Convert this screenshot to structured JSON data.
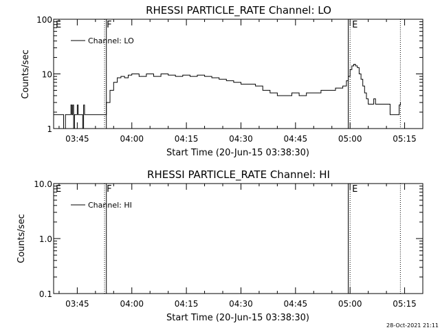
{
  "footer_date": "28-Oct-2021 21:11",
  "chart_data": [
    {
      "type": "line",
      "title": "RHESSI PARTICLE_RATE Channel: LO",
      "xlabel": "Start Time (20-Jun-15 03:38:30)",
      "ylabel": "Counts/sec",
      "yscale": "log",
      "ylim": [
        1,
        100
      ],
      "xlim": [
        "03:38:30",
        "05:20:00"
      ],
      "x_ticks": [
        "03:45",
        "04:00",
        "04:15",
        "04:30",
        "04:45",
        "05:00",
        "05:15"
      ],
      "y_ticks": [
        "1",
        "10",
        "100"
      ],
      "legend": "Channel: LO",
      "legend_position": "top-left",
      "markers": [
        {
          "time": "03:38:30",
          "label": "E",
          "style": "solid"
        },
        {
          "time": "03:52:30",
          "label": "F",
          "style": "dotted"
        },
        {
          "time": "03:53:00",
          "label": "",
          "style": "solid"
        },
        {
          "time": "04:59:30",
          "label": "",
          "style": "solid"
        },
        {
          "time": "05:00:00",
          "label": "E",
          "style": "dotted"
        },
        {
          "time": "05:13:50",
          "label": "",
          "style": "dotted"
        }
      ],
      "series": [
        {
          "name": "Channel: LO",
          "points": [
            [
              "03:38:30",
              1.8
            ],
            [
              "03:41:00",
              1.8
            ],
            [
              "03:41:15",
              1.0
            ],
            [
              "03:41:45",
              1.8
            ],
            [
              "03:43:00",
              1.8
            ],
            [
              "03:43:15",
              2.7
            ],
            [
              "03:43:30",
              1.8
            ],
            [
              "03:43:45",
              2.7
            ],
            [
              "03:44:00",
              1.0
            ],
            [
              "03:44:15",
              1.8
            ],
            [
              "03:45:00",
              2.7
            ],
            [
              "03:45:15",
              1.8
            ],
            [
              "03:46:15",
              1.8
            ],
            [
              "03:46:30",
              1.0
            ],
            [
              "03:46:45",
              2.7
            ],
            [
              "03:47:00",
              1.8
            ],
            [
              "03:52:45",
              1.8
            ],
            [
              "03:53:00",
              3.0
            ],
            [
              "03:54:00",
              5.0
            ],
            [
              "03:55:00",
              7.0
            ],
            [
              "03:56:00",
              8.5
            ],
            [
              "03:57:00",
              9.0
            ],
            [
              "03:58:00",
              8.5
            ],
            [
              "03:59:00",
              9.5
            ],
            [
              "04:00:00",
              10.0
            ],
            [
              "04:02:00",
              9.0
            ],
            [
              "04:04:00",
              10.0
            ],
            [
              "04:06:00",
              9.0
            ],
            [
              "04:08:00",
              10.0
            ],
            [
              "04:10:00",
              9.5
            ],
            [
              "04:12:00",
              9.0
            ],
            [
              "04:14:00",
              9.5
            ],
            [
              "04:16:00",
              9.0
            ],
            [
              "04:18:00",
              9.5
            ],
            [
              "04:20:00",
              9.0
            ],
            [
              "04:22:00",
              8.5
            ],
            [
              "04:24:00",
              8.0
            ],
            [
              "04:26:00",
              7.5
            ],
            [
              "04:28:00",
              7.0
            ],
            [
              "04:30:00",
              6.5
            ],
            [
              "04:32:00",
              6.5
            ],
            [
              "04:34:00",
              6.0
            ],
            [
              "04:36:00",
              5.0
            ],
            [
              "04:38:00",
              4.5
            ],
            [
              "04:40:00",
              4.0
            ],
            [
              "04:42:00",
              4.0
            ],
            [
              "04:44:00",
              4.5
            ],
            [
              "04:46:00",
              4.0
            ],
            [
              "04:48:00",
              4.5
            ],
            [
              "04:50:00",
              4.5
            ],
            [
              "04:52:00",
              5.0
            ],
            [
              "04:54:00",
              5.0
            ],
            [
              "04:56:00",
              5.5
            ],
            [
              "04:58:00",
              6.0
            ],
            [
              "04:59:00",
              7.5
            ],
            [
              "04:59:30",
              9.0
            ],
            [
              "05:00:00",
              12.0
            ],
            [
              "05:00:30",
              14.0
            ],
            [
              "05:01:00",
              15.0
            ],
            [
              "05:01:30",
              14.0
            ],
            [
              "05:02:00",
              13.0
            ],
            [
              "05:02:30",
              10.0
            ],
            [
              "05:03:00",
              8.0
            ],
            [
              "05:03:30",
              6.0
            ],
            [
              "05:04:00",
              4.5
            ],
            [
              "05:04:30",
              3.5
            ],
            [
              "05:05:00",
              2.8
            ],
            [
              "05:06:00",
              2.8
            ],
            [
              "05:06:30",
              3.5
            ],
            [
              "05:07:00",
              2.8
            ],
            [
              "05:10:30",
              2.8
            ],
            [
              "05:11:00",
              1.8
            ],
            [
              "05:13:00",
              1.8
            ],
            [
              "05:13:30",
              2.7
            ],
            [
              "05:13:50",
              3.0
            ]
          ]
        }
      ]
    },
    {
      "type": "line",
      "title": "RHESSI PARTICLE_RATE Channel: HI",
      "xlabel": "Start Time (20-Jun-15 03:38:30)",
      "ylabel": "Counts/sec",
      "yscale": "log",
      "ylim": [
        0.1,
        10
      ],
      "xlim": [
        "03:38:30",
        "05:20:00"
      ],
      "x_ticks": [
        "03:45",
        "04:00",
        "04:15",
        "04:30",
        "04:45",
        "05:00",
        "05:15"
      ],
      "y_ticks": [
        "0.1",
        "1.0",
        "10.0"
      ],
      "legend": "Channel: HI",
      "legend_position": "top-left",
      "markers": [
        {
          "time": "03:38:30",
          "label": "E",
          "style": "solid"
        },
        {
          "time": "03:52:30",
          "label": "F",
          "style": "dotted"
        },
        {
          "time": "03:53:00",
          "label": "",
          "style": "solid"
        },
        {
          "time": "04:59:30",
          "label": "",
          "style": "solid"
        },
        {
          "time": "05:00:00",
          "label": "E",
          "style": "dotted"
        },
        {
          "time": "05:13:50",
          "label": "",
          "style": "dotted"
        }
      ],
      "series": [
        {
          "name": "Channel: HI",
          "points": []
        }
      ]
    }
  ]
}
